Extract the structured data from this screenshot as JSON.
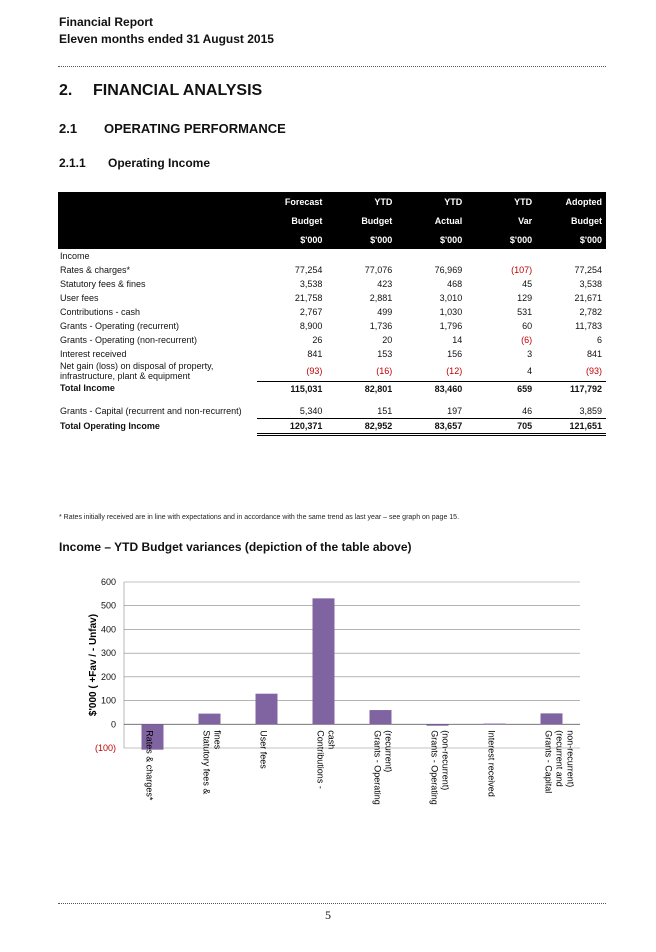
{
  "header": {
    "line1": "Financial Report",
    "line2": "Eleven months ended 31 August 2015"
  },
  "section": {
    "num": "2.",
    "title": "FINANCIAL ANALYSIS"
  },
  "subsection": {
    "num": "2.1",
    "title": "OPERATING PERFORMANCE"
  },
  "subsubsection": {
    "num": "2.1.1",
    "title": "Operating Income"
  },
  "table": {
    "columns": [
      [
        "Forecast",
        "Budget",
        "$'000"
      ],
      [
        "YTD",
        "Budget",
        "$'000"
      ],
      [
        "YTD",
        "Actual",
        "$'000"
      ],
      [
        "YTD",
        "Var",
        "$'000"
      ],
      [
        "Adopted",
        "Budget",
        "$'000"
      ]
    ],
    "section_label": "Income",
    "rows": [
      {
        "label": "Rates & charges*",
        "values": [
          "77,254",
          "77,076",
          "76,969",
          "(107)",
          "77,254"
        ],
        "neg": [
          false,
          false,
          false,
          true,
          false
        ]
      },
      {
        "label": "Statutory fees & fines",
        "values": [
          "3,538",
          "423",
          "468",
          "45",
          "3,538"
        ],
        "neg": [
          false,
          false,
          false,
          false,
          false
        ]
      },
      {
        "label": "User fees",
        "values": [
          "21,758",
          "2,881",
          "3,010",
          "129",
          "21,671"
        ],
        "neg": [
          false,
          false,
          false,
          false,
          false
        ]
      },
      {
        "label": "Contributions - cash",
        "values": [
          "2,767",
          "499",
          "1,030",
          "531",
          "2,782"
        ],
        "neg": [
          false,
          false,
          false,
          false,
          false
        ]
      },
      {
        "label": "Grants - Operating (recurrent)",
        "values": [
          "8,900",
          "1,736",
          "1,796",
          "60",
          "11,783"
        ],
        "neg": [
          false,
          false,
          false,
          false,
          false
        ]
      },
      {
        "label": "Grants - Operating (non-recurrent)",
        "values": [
          "26",
          "20",
          "14",
          "(6)",
          "6"
        ],
        "neg": [
          false,
          false,
          false,
          true,
          false
        ]
      },
      {
        "label": "Interest received",
        "values": [
          "841",
          "153",
          "156",
          "3",
          "841"
        ],
        "neg": [
          false,
          false,
          false,
          false,
          false
        ]
      },
      {
        "label": "Net gain (loss) on disposal of property, infrastructure, plant & equipment",
        "values": [
          "(93)",
          "(16)",
          "(12)",
          "4",
          "(93)"
        ],
        "neg": [
          true,
          true,
          true,
          false,
          true
        ]
      }
    ],
    "total_income": {
      "label": "Total Income",
      "values": [
        "115,031",
        "82,801",
        "83,460",
        "659",
        "117,792"
      ]
    },
    "capital_row": {
      "label": "Grants - Capital (recurrent and non-recurrent)",
      "values": [
        "5,340",
        "151",
        "197",
        "46",
        "3,859"
      ]
    },
    "total_operating": {
      "label": "Total Operating Income",
      "values": [
        "120,371",
        "82,952",
        "83,657",
        "705",
        "121,651"
      ]
    }
  },
  "footnote": "* Rates initially received are in line with expectations and in accordance with the same trend as last year – see graph on page 15.",
  "chart_title": "Income – YTD Budget variances (depiction of the table above)",
  "chart_data": {
    "type": "bar",
    "categories": [
      "Rates & charges*",
      "Statutory fees & fines",
      "User fees",
      "Contributions - cash",
      "Grants - Operating (recurrent)",
      "Grants - Operating (non-recurrent)",
      "Interest received",
      "Grants - Capital (recurrent and non-recurrent)"
    ],
    "values": [
      -107,
      45,
      129,
      531,
      60,
      -6,
      3,
      46
    ],
    "ylabel": "$'000 ( +Fav / - Unfav)",
    "ylim": [
      -100,
      600
    ],
    "yticks": [
      "(100)",
      "0",
      "100",
      "200",
      "300",
      "400",
      "500",
      "600"
    ],
    "grid": true,
    "bar_color": "#8064a2",
    "negative_tick_color": "#c00000"
  },
  "page_number": "5"
}
